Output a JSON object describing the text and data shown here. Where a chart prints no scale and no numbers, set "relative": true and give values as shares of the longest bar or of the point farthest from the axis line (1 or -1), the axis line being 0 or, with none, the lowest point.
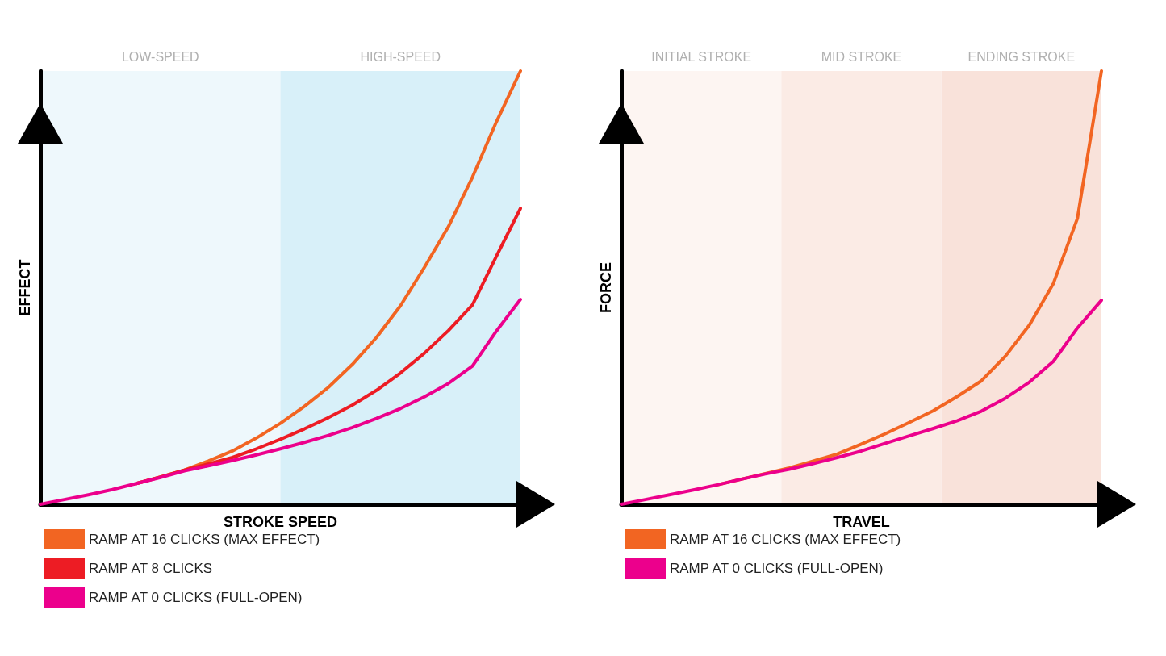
{
  "chart_data": [
    {
      "type": "line",
      "relative": true,
      "xlabel": "STROKE SPEED",
      "ylabel": "EFFECT",
      "grid": false,
      "marker": "none",
      "line_style": "solid",
      "legend": "bottom left",
      "categories": [
        null,
        null,
        null,
        null,
        null,
        null,
        null,
        null,
        null,
        null,
        null,
        null,
        null,
        null,
        null,
        null,
        null,
        null,
        null,
        null,
        null
      ],
      "annotations": [
        "LOW-SPEED",
        "HIGH-SPEED"
      ],
      "series": [
        {
          "name": "RAMP AT 16 CLICKS (MAX EFFECT)",
          "color": "#f26522",
          "values": [
            null,
            null,
            null,
            null,
            0.048,
            0.063,
            0.079,
            0.1,
            0.123,
            0.153,
            0.187,
            0.226,
            0.27,
            0.323,
            0.385,
            0.458,
            0.547,
            0.641,
            0.755,
            0.883,
            1
          ]
        },
        {
          "name": "RAMP AT 8 CLICKS",
          "color": "#ed1c24",
          "values": [
            null,
            null,
            null,
            null,
            0.048,
            0.063,
            0.079,
            0.093,
            0.108,
            0.128,
            0.15,
            0.174,
            0.2,
            0.229,
            0.263,
            0.303,
            0.349,
            0.401,
            0.46,
            0.573,
            0.683
          ]
        },
        {
          "name": "RAMP AT 0 CLICKS (FULL-OPEN)",
          "color": "#ec008c",
          "values": [
            0,
            0.011,
            0.022,
            0.034,
            0.048,
            0.062,
            0.077,
            0.089,
            0.101,
            0.114,
            0.128,
            0.143,
            0.159,
            0.177,
            0.198,
            0.221,
            0.248,
            0.279,
            0.319,
            0.4,
            0.473
          ]
        }
      ]
    },
    {
      "type": "line",
      "relative": true,
      "xlabel": "TRAVEL",
      "ylabel": "FORCE",
      "grid": false,
      "marker": "none",
      "line_style": "solid",
      "legend": "bottom left",
      "categories": [
        null,
        null,
        null,
        null,
        null,
        null,
        null,
        null,
        null,
        null,
        null,
        null,
        null,
        null,
        null,
        null,
        null,
        null,
        null,
        null,
        null
      ],
      "annotations": [
        "INITIAL STROKE",
        "MID STROKE",
        "ENDING STROKE"
      ],
      "series": [
        {
          "name": "RAMP AT 16 CLICKS (MAX EFFECT)",
          "color": "#f26522",
          "values": [
            null,
            null,
            null,
            null,
            0.045,
            0.058,
            0.071,
            0.084,
            0.1,
            0.116,
            0.139,
            0.163,
            0.189,
            0.216,
            0.249,
            0.285,
            0.342,
            0.414,
            0.51,
            0.66,
            1
          ]
        },
        {
          "name": "RAMP AT 0 CLICKS (FULL-OPEN)",
          "color": "#ec008c",
          "values": [
            0,
            0.011,
            0.022,
            0.033,
            0.045,
            0.058,
            0.07,
            0.081,
            0.094,
            0.108,
            0.123,
            0.141,
            0.158,
            0.175,
            0.193,
            0.215,
            0.245,
            0.282,
            0.33,
            0.407,
            0.471
          ]
        }
      ]
    }
  ]
}
